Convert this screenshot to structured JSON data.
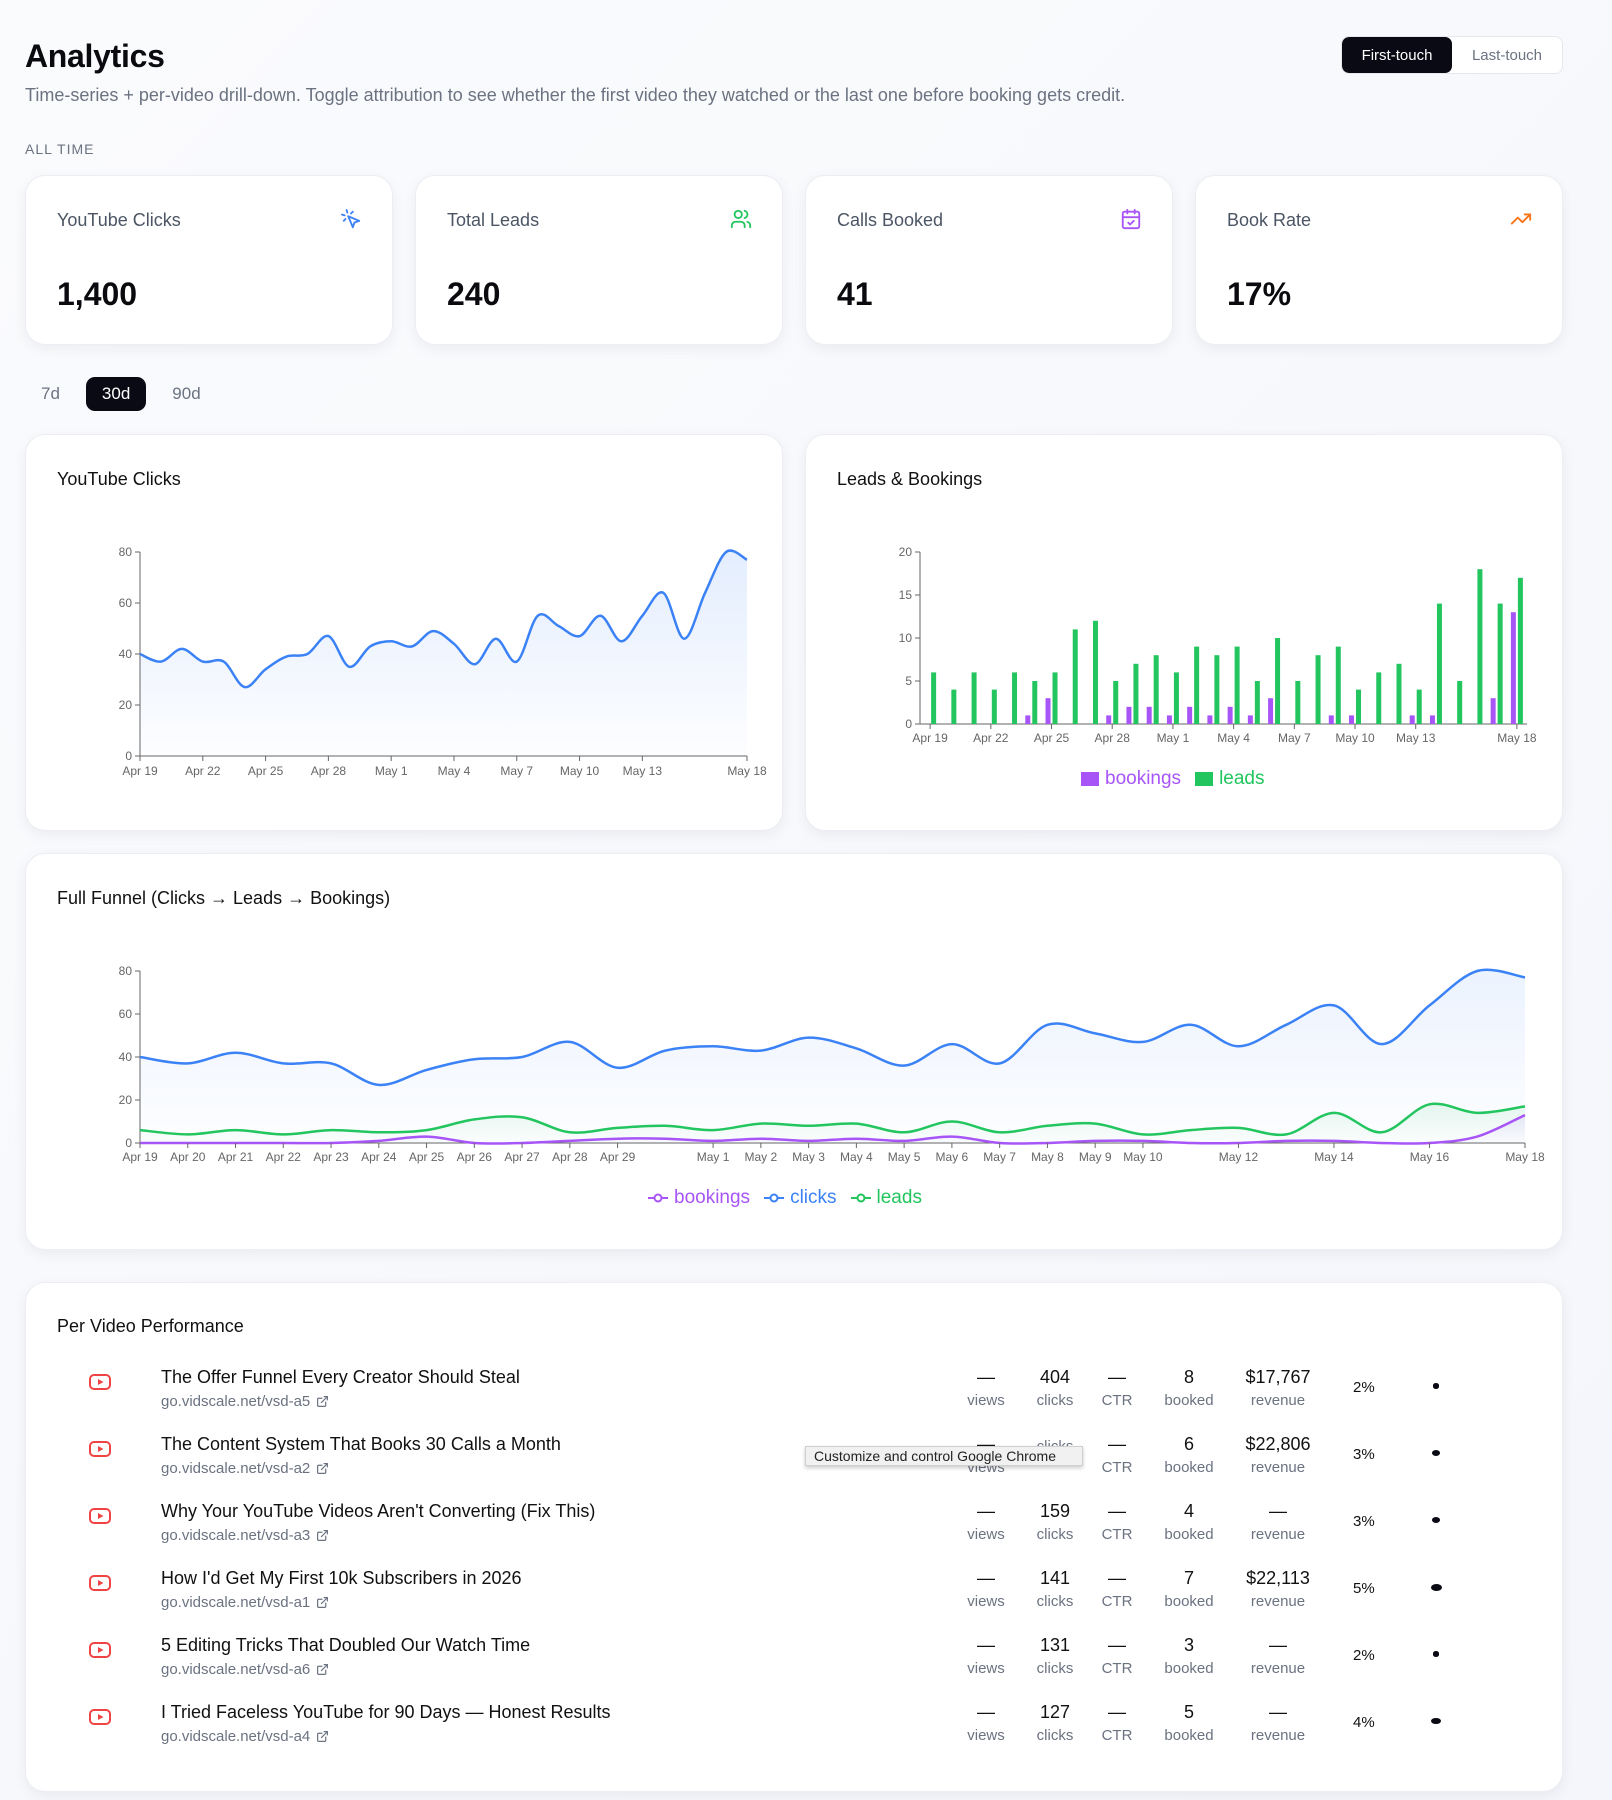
{
  "header": {
    "title": "Analytics",
    "subtitle": "Time-series + per-video drill-down. Toggle attribution to see whether the first video they watched or the last one before booking gets credit.",
    "attribution": {
      "first": "First-touch",
      "last": "Last-touch",
      "selected": "First-touch"
    }
  },
  "section_label": "ALL TIME",
  "stats": [
    {
      "label": "YouTube Clicks",
      "value": "1,400",
      "icon": "cursor-click-icon",
      "color": "#3b82f6"
    },
    {
      "label": "Total Leads",
      "value": "240",
      "icon": "users-icon",
      "color": "#22c55e"
    },
    {
      "label": "Calls Booked",
      "value": "41",
      "icon": "calendar-check-icon",
      "color": "#a855f7"
    },
    {
      "label": "Book Rate",
      "value": "17%",
      "icon": "trending-up-icon",
      "color": "#f97316"
    }
  ],
  "range_tabs": {
    "options": [
      "7d",
      "30d",
      "90d"
    ],
    "selected": "30d"
  },
  "colors": {
    "clicks": "#3b82f6",
    "leads": "#22c55e",
    "bookings": "#a855f7"
  },
  "chart_data": [
    {
      "type": "area",
      "title": "YouTube Clicks",
      "x": [
        "Apr 19",
        "Apr 20",
        "Apr 21",
        "Apr 22",
        "Apr 23",
        "Apr 24",
        "Apr 25",
        "Apr 26",
        "Apr 27",
        "Apr 28",
        "Apr 29",
        "Apr 30",
        "May 1",
        "May 2",
        "May 3",
        "May 4",
        "May 5",
        "May 6",
        "May 7",
        "May 8",
        "May 9",
        "May 10",
        "May 11",
        "May 12",
        "May 13",
        "May 14",
        "May 15",
        "May 16",
        "May 17",
        "May 18"
      ],
      "tick_labels": [
        "Apr 19",
        "Apr 22",
        "Apr 25",
        "Apr 28",
        "May 1",
        "May 4",
        "May 7",
        "May 10",
        "May 13",
        "May 18"
      ],
      "series": [
        {
          "name": "clicks",
          "values": [
            40,
            37,
            42,
            37,
            37,
            27,
            34,
            39,
            40,
            47,
            35,
            43,
            45,
            43,
            49,
            44,
            36,
            46,
            37,
            55,
            51,
            47,
            55,
            45,
            55,
            64,
            46,
            64,
            80,
            77
          ]
        }
      ],
      "ylim": [
        0,
        80
      ],
      "yticks": [
        0,
        20,
        40,
        60,
        80
      ]
    },
    {
      "type": "bar",
      "title": "Leads & Bookings",
      "x": [
        "Apr 19",
        "Apr 20",
        "Apr 21",
        "Apr 22",
        "Apr 23",
        "Apr 24",
        "Apr 25",
        "Apr 26",
        "Apr 27",
        "Apr 28",
        "Apr 29",
        "Apr 30",
        "May 1",
        "May 2",
        "May 3",
        "May 4",
        "May 5",
        "May 6",
        "May 7",
        "May 8",
        "May 9",
        "May 10",
        "May 11",
        "May 12",
        "May 13",
        "May 14",
        "May 15",
        "May 16",
        "May 17",
        "May 18"
      ],
      "tick_labels": [
        "Apr 19",
        "Apr 22",
        "Apr 25",
        "Apr 28",
        "May 1",
        "May 4",
        "May 7",
        "May 10",
        "May 13",
        "May 18"
      ],
      "series": [
        {
          "name": "bookings",
          "values": [
            0,
            0,
            0,
            0,
            0,
            1,
            3,
            0,
            0,
            1,
            2,
            2,
            1,
            2,
            1,
            2,
            1,
            3,
            0,
            0,
            1,
            1,
            0,
            0,
            1,
            1,
            0,
            0,
            3,
            13
          ]
        },
        {
          "name": "leads",
          "values": [
            6,
            4,
            6,
            4,
            6,
            5,
            6,
            11,
            12,
            5,
            7,
            8,
            6,
            9,
            8,
            9,
            5,
            10,
            5,
            8,
            9,
            4,
            6,
            7,
            4,
            14,
            5,
            18,
            14,
            17
          ]
        }
      ],
      "ylim": [
        0,
        20
      ],
      "yticks": [
        0,
        5,
        10,
        15,
        20
      ],
      "legend": [
        "bookings",
        "leads"
      ]
    },
    {
      "type": "line",
      "title": "Full Funnel (Clicks → Leads → Bookings)",
      "x": [
        "Apr 19",
        "Apr 20",
        "Apr 21",
        "Apr 22",
        "Apr 23",
        "Apr 24",
        "Apr 25",
        "Apr 26",
        "Apr 27",
        "Apr 28",
        "Apr 29",
        "Apr 30",
        "May 1",
        "May 2",
        "May 3",
        "May 4",
        "May 5",
        "May 6",
        "May 7",
        "May 8",
        "May 9",
        "May 10",
        "May 11",
        "May 12",
        "May 13",
        "May 14",
        "May 15",
        "May 16",
        "May 17",
        "May 18"
      ],
      "tick_labels": [
        "Apr 19",
        "Apr 20",
        "Apr 21",
        "Apr 22",
        "Apr 23",
        "Apr 24",
        "Apr 25",
        "Apr 26",
        "Apr 27",
        "Apr 28",
        "Apr 29",
        "May 1",
        "May 2",
        "May 3",
        "May 4",
        "May 5",
        "May 6",
        "May 7",
        "May 8",
        "May 9",
        "May 10",
        "May 12",
        "May 14",
        "May 16",
        "May 18"
      ],
      "series": [
        {
          "name": "clicks",
          "values": [
            40,
            37,
            42,
            37,
            37,
            27,
            34,
            39,
            40,
            47,
            35,
            43,
            45,
            43,
            49,
            44,
            36,
            46,
            37,
            55,
            51,
            47,
            55,
            45,
            55,
            64,
            46,
            64,
            80,
            77
          ]
        },
        {
          "name": "leads",
          "values": [
            6,
            4,
            6,
            4,
            6,
            5,
            6,
            11,
            12,
            5,
            7,
            8,
            6,
            9,
            8,
            9,
            5,
            10,
            5,
            8,
            9,
            4,
            6,
            7,
            4,
            14,
            5,
            18,
            14,
            17
          ]
        },
        {
          "name": "bookings",
          "values": [
            0,
            0,
            0,
            0,
            0,
            1,
            3,
            0,
            0,
            1,
            2,
            2,
            1,
            2,
            1,
            2,
            1,
            3,
            0,
            0,
            1,
            1,
            0,
            0,
            1,
            1,
            0,
            0,
            3,
            13
          ]
        }
      ],
      "ylim": [
        0,
        80
      ],
      "yticks": [
        0,
        20,
        40,
        60,
        80
      ],
      "legend": [
        "bookings",
        "clicks",
        "leads"
      ]
    }
  ],
  "videos": {
    "title": "Per Video Performance",
    "labels": {
      "views": "views",
      "clicks": "clicks",
      "ctr": "CTR",
      "booked": "booked",
      "revenue": "revenue"
    },
    "rows": [
      {
        "title": "The Offer Funnel Every Creator Should Steal",
        "url": "go.vidscale.net/vsd-a5",
        "views": "—",
        "clicks": "404",
        "ctr": "—",
        "booked": "8",
        "revenue": "$17,767",
        "rate": "2%",
        "dot": 0.02
      },
      {
        "title": "The Content System That Books 30 Calls a Month",
        "url": "go.vidscale.net/vsd-a2",
        "views": "—",
        "clicks": "",
        "ctr": "—",
        "booked": "6",
        "revenue": "$22,806",
        "rate": "3%",
        "dot": 0.03
      },
      {
        "title": "Why Your YouTube Videos Aren't Converting (Fix This)",
        "url": "go.vidscale.net/vsd-a3",
        "views": "—",
        "clicks": "159",
        "ctr": "—",
        "booked": "4",
        "revenue": "—",
        "rate": "3%",
        "dot": 0.03
      },
      {
        "title": "How I'd Get My First 10k Subscribers in 2026",
        "url": "go.vidscale.net/vsd-a1",
        "views": "—",
        "clicks": "141",
        "ctr": "—",
        "booked": "7",
        "revenue": "$22,113",
        "rate": "5%",
        "dot": 0.05
      },
      {
        "title": "5 Editing Tricks That Doubled Our Watch Time",
        "url": "go.vidscale.net/vsd-a6",
        "views": "—",
        "clicks": "131",
        "ctr": "—",
        "booked": "3",
        "revenue": "—",
        "rate": "2%",
        "dot": 0.02
      },
      {
        "title": "I Tried Faceless YouTube for 90 Days — Honest Results",
        "url": "go.vidscale.net/vsd-a4",
        "views": "—",
        "clicks": "127",
        "ctr": "—",
        "booked": "5",
        "revenue": "—",
        "rate": "4%",
        "dot": 0.04
      }
    ]
  },
  "tooltip": "Customize and control Google Chrome"
}
